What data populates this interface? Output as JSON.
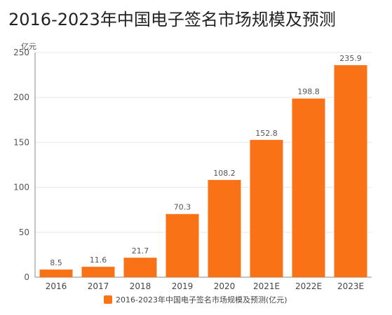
{
  "chart_data": {
    "type": "bar",
    "title": "2016-2023年中国电子签名市场规模及预测",
    "unit_label": "亿元",
    "categories": [
      "2016",
      "2017",
      "2018",
      "2019",
      "2020",
      "2021E",
      "2022E",
      "2023E"
    ],
    "series": [
      {
        "name": "2016-2023年中国电子签名市场规模及预测(亿元)",
        "values": [
          8.5,
          11.6,
          21.7,
          70.3,
          108.2,
          152.8,
          198.8,
          235.9
        ],
        "color": "#f97316"
      }
    ],
    "y_ticks": [
      "0",
      "50",
      "100",
      "150",
      "200",
      "250"
    ],
    "ylim": [
      0,
      250
    ],
    "grid": true,
    "legend_position": "bottom-center",
    "colors": {
      "bar": "#f97316",
      "grid": "#e8e8e8",
      "axis": "#888888",
      "text": "#555555"
    }
  }
}
